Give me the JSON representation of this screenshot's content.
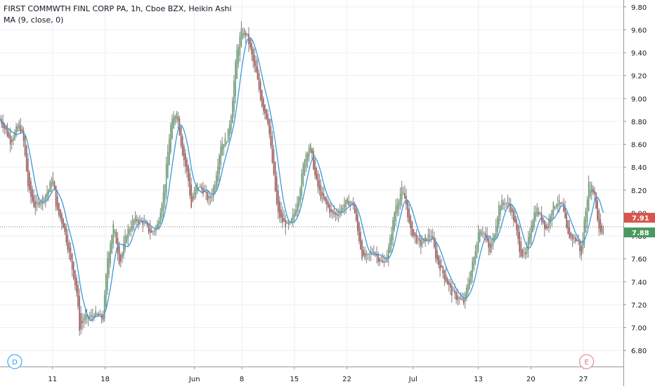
{
  "legend": {
    "title": "FIRST COMMWTH FINL CORP PA, 1h, Cboe BZX, Heikin Ashi",
    "ma": "MA (9, close, 0)"
  },
  "colors": {
    "up": "#6b9a73",
    "down": "#9c5a5a",
    "wick": "#7f7f7f",
    "ma": "#3a9ad9",
    "grid": "#eceff5",
    "axis": "#9598a1",
    "last_red": "#d9544d",
    "last_green": "#4a9a5e",
    "marker_d": "#2196f3",
    "marker_e": "#e57373"
  },
  "markers": [
    {
      "label": "D",
      "x": 1.4
    },
    {
      "label": "E",
      "x": 55.8
    }
  ],
  "chart_data": {
    "type": "candlestick",
    "style": "Heikin Ashi",
    "interval": "1h",
    "x_ticks": [
      {
        "label": "11",
        "x": 5
      },
      {
        "label": "18",
        "x": 10
      },
      {
        "label": "Jun",
        "x": 18.5
      },
      {
        "label": "8",
        "x": 23
      },
      {
        "label": "15",
        "x": 28
      },
      {
        "label": "22",
        "x": 33
      },
      {
        "label": "Jul",
        "x": 39.3
      },
      {
        "label": "13",
        "x": 45.5
      },
      {
        "label": "20",
        "x": 50.5
      },
      {
        "label": "27",
        "x": 55.5
      }
    ],
    "x_range": [
      0,
      59.3
    ],
    "y_ticks": [
      6.8,
      7.0,
      7.2,
      7.4,
      7.6,
      7.8,
      8.0,
      8.2,
      8.4,
      8.6,
      8.8,
      9.0,
      9.2,
      9.4,
      9.6,
      9.8
    ],
    "ylim": [
      6.66,
      9.86
    ],
    "last_close": 7.88,
    "last_price_labels": [
      {
        "value": 7.91,
        "label": "7.91",
        "color": "red"
      },
      {
        "value": 7.88,
        "label": "7.88",
        "color": "green"
      }
    ],
    "price_line": 7.88,
    "close_path": [
      [
        0.0,
        8.82
      ],
      [
        0.5,
        8.73
      ],
      [
        1.0,
        8.62
      ],
      [
        1.8,
        8.78
      ],
      [
        2.2,
        8.66
      ],
      [
        2.7,
        8.2
      ],
      [
        3.3,
        8.05
      ],
      [
        4.0,
        8.12
      ],
      [
        4.6,
        8.2
      ],
      [
        5.0,
        8.32
      ],
      [
        5.4,
        8.02
      ],
      [
        6.0,
        7.9
      ],
      [
        6.5,
        7.68
      ],
      [
        7.0,
        7.45
      ],
      [
        7.3,
        7.3
      ],
      [
        7.6,
        6.95
      ],
      [
        8.0,
        7.1
      ],
      [
        8.5,
        7.08
      ],
      [
        9.0,
        7.12
      ],
      [
        9.8,
        7.08
      ],
      [
        10.2,
        7.6
      ],
      [
        10.8,
        7.9
      ],
      [
        11.4,
        7.55
      ],
      [
        12.0,
        7.82
      ],
      [
        12.8,
        7.95
      ],
      [
        13.6,
        7.92
      ],
      [
        14.4,
        7.82
      ],
      [
        15.0,
        7.9
      ],
      [
        15.6,
        8.2
      ],
      [
        16.2,
        8.75
      ],
      [
        16.8,
        8.9
      ],
      [
        17.3,
        8.55
      ],
      [
        17.9,
        8.3
      ],
      [
        18.2,
        8.05
      ],
      [
        18.7,
        8.25
      ],
      [
        19.3,
        8.2
      ],
      [
        19.9,
        8.1
      ],
      [
        20.4,
        8.25
      ],
      [
        21.0,
        8.6
      ],
      [
        21.6,
        8.65
      ],
      [
        22.0,
        8.88
      ],
      [
        22.5,
        9.4
      ],
      [
        23.0,
        9.6
      ],
      [
        23.5,
        9.55
      ],
      [
        24.0,
        9.35
      ],
      [
        24.4,
        9.2
      ],
      [
        24.9,
        8.95
      ],
      [
        25.5,
        8.8
      ],
      [
        26.0,
        8.35
      ],
      [
        26.4,
        8.0
      ],
      [
        26.9,
        7.92
      ],
      [
        27.5,
        7.88
      ],
      [
        28.0,
        8.0
      ],
      [
        28.5,
        8.2
      ],
      [
        29.0,
        8.5
      ],
      [
        29.5,
        8.6
      ],
      [
        30.0,
        8.3
      ],
      [
        30.5,
        8.15
      ],
      [
        31.0,
        8.08
      ],
      [
        31.5,
        8.0
      ],
      [
        32.0,
        7.98
      ],
      [
        32.5,
        8.05
      ],
      [
        33.0,
        8.1
      ],
      [
        33.6,
        8.08
      ],
      [
        34.0,
        7.85
      ],
      [
        34.5,
        7.6
      ],
      [
        35.0,
        7.62
      ],
      [
        35.5,
        7.68
      ],
      [
        36.0,
        7.6
      ],
      [
        36.5,
        7.55
      ],
      [
        37.0,
        7.7
      ],
      [
        37.6,
        8.05
      ],
      [
        38.2,
        8.2
      ],
      [
        38.6,
        8.1
      ],
      [
        39.0,
        7.85
      ],
      [
        39.5,
        7.78
      ],
      [
        40.0,
        7.72
      ],
      [
        40.5,
        7.78
      ],
      [
        41.0,
        7.82
      ],
      [
        41.5,
        7.6
      ],
      [
        42.0,
        7.5
      ],
      [
        42.5,
        7.4
      ],
      [
        43.0,
        7.3
      ],
      [
        43.6,
        7.25
      ],
      [
        44.1,
        7.22
      ],
      [
        44.6,
        7.42
      ],
      [
        45.1,
        7.62
      ],
      [
        45.6,
        7.88
      ],
      [
        46.1,
        7.82
      ],
      [
        46.6,
        7.65
      ],
      [
        47.0,
        7.82
      ],
      [
        47.5,
        8.08
      ],
      [
        48.0,
        8.1
      ],
      [
        48.5,
        8.06
      ],
      [
        49.0,
        7.9
      ],
      [
        49.5,
        7.65
      ],
      [
        50.0,
        7.62
      ],
      [
        50.5,
        7.9
      ],
      [
        51.0,
        8.05
      ],
      [
        51.5,
        7.95
      ],
      [
        52.0,
        7.85
      ],
      [
        52.5,
        8.05
      ],
      [
        53.0,
        8.1
      ],
      [
        53.5,
        8.06
      ],
      [
        54.0,
        7.8
      ],
      [
        54.5,
        7.78
      ],
      [
        55.0,
        7.75
      ],
      [
        55.3,
        7.62
      ],
      [
        55.6,
        7.95
      ],
      [
        56.0,
        8.25
      ],
      [
        56.5,
        8.2
      ],
      [
        56.9,
        7.9
      ],
      [
        57.2,
        7.82
      ],
      [
        57.4,
        7.88
      ]
    ]
  }
}
